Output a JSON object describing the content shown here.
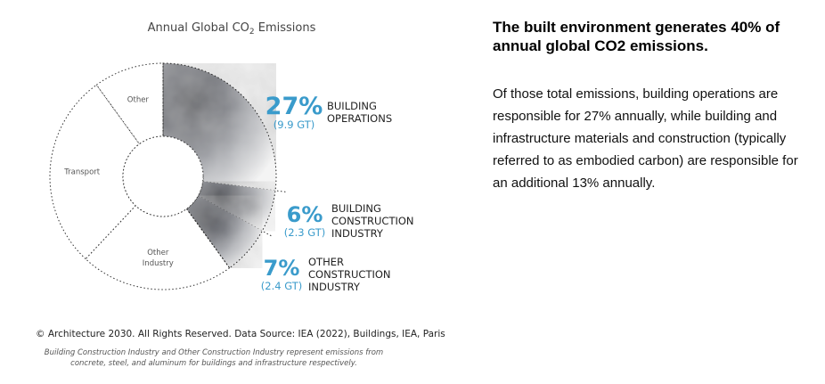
{
  "chart_data": {
    "type": "pie",
    "title_text": "Annual Global CO",
    "title_subscript": "2",
    "title_suffix": " Emissions",
    "segments": [
      {
        "name": "BUILDING OPERATIONS",
        "value": 27,
        "percent_label": "27%",
        "gt_label": "(9.9 GT)",
        "label_lines": [
          "BUILDING",
          "OPERATIONS"
        ],
        "highlight": true
      },
      {
        "name": "BUILDING CONSTRUCTION INDUSTRY",
        "value": 6,
        "percent_label": "6%",
        "gt_label": "(2.3 GT)",
        "label_lines": [
          "BUILDING",
          "CONSTRUCTION",
          "INDUSTRY"
        ],
        "highlight": true
      },
      {
        "name": "OTHER CONSTRUCTION INDUSTRY",
        "value": 7,
        "percent_label": "7%",
        "gt_label": "(2.4 GT)",
        "label_lines": [
          "OTHER",
          "CONSTRUCTION",
          "INDUSTRY"
        ],
        "highlight": true
      },
      {
        "name": "Other Industry",
        "value": 22,
        "label_lines": [
          "Other",
          "Industry"
        ],
        "highlight": false
      },
      {
        "name": "Transport",
        "value": 28,
        "label_lines": [
          "Transport"
        ],
        "highlight": false
      },
      {
        "name": "Other",
        "value": 10,
        "label_lines": [
          "Other"
        ],
        "highlight": false
      }
    ],
    "colors": {
      "accent": "#3a9bcb",
      "outline": "#333333",
      "shade_dark": "#2b2e38",
      "shade_light": "#f2f2f2"
    }
  },
  "copyright": "© Architecture 2030. All Rights Reserved. Data Source: IEA (2022), Buildings, IEA, Paris",
  "footnote": "Building Construction Industry and Other Construction Industry represent emissions from concrete, steel, and aluminum for buildings and infrastructure respectively.",
  "heading": "The built environment generates 40% of annual global CO2 emissions.",
  "body": "Of those total emissions, building operations are responsible for 27% annually, while building and infrastructure materials and construction (typically referred to as embodied carbon) are responsible for an additional 13% annually."
}
